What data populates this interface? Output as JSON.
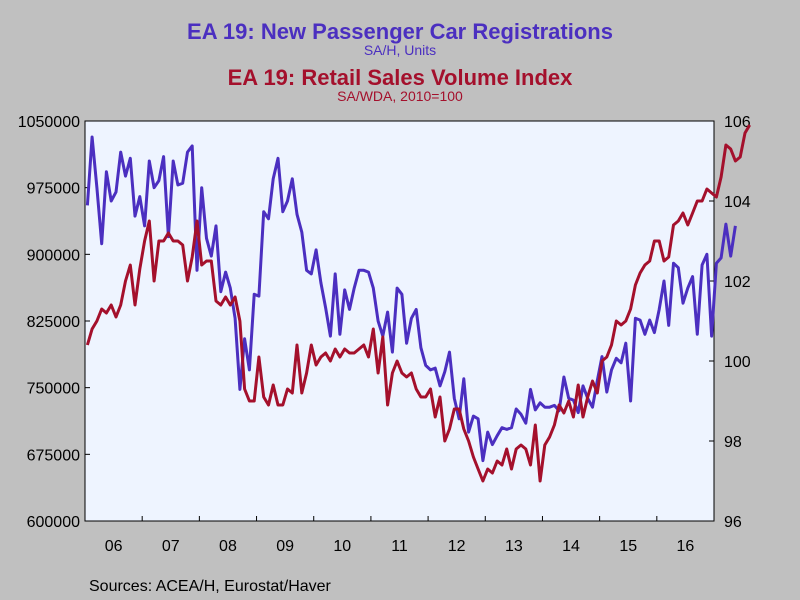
{
  "titles": {
    "title1": "EA 19: New Passenger Car Registrations",
    "subtitle1": "SA/H, Units",
    "title2": "EA 19: Retail Sales Volume Index",
    "subtitle2": "SA/WDA, 2010=100"
  },
  "source": "Sources:  ACEA/H, Eurostat/Haver",
  "colors": {
    "series1": "#4b2fc0",
    "series2": "#a4102c",
    "plot_bg": "#eef4ff",
    "page_bg": "#c0c0c0"
  },
  "chart_data": {
    "type": "line",
    "x_tick_labels": [
      "06",
      "07",
      "08",
      "09",
      "10",
      "11",
      "12",
      "13",
      "14",
      "15",
      "16"
    ],
    "x_start": "2006-01",
    "frequency": "monthly",
    "left_axis": {
      "ylim": [
        600000,
        1050000
      ],
      "ticks": [
        "600000",
        "675000",
        "750000",
        "825000",
        "900000",
        "975000",
        "1050000"
      ]
    },
    "right_axis": {
      "ylim": [
        96,
        106
      ],
      "ticks": [
        "96",
        "98",
        "100",
        "102",
        "104",
        "106"
      ]
    },
    "series": [
      {
        "axis": "left",
        "values": [
          955000,
          1032000,
          975000,
          912000,
          993000,
          960000,
          970000,
          1015000,
          988000,
          1008000,
          943000,
          965000,
          932000,
          1005000,
          975000,
          983000,
          1010000,
          920000,
          1005000,
          978000,
          980000,
          1015000,
          1022000,
          882000,
          975000,
          918000,
          898000,
          932000,
          858000,
          880000,
          862000,
          828000,
          748000,
          805000,
          770000,
          855000,
          853000,
          948000,
          940000,
          985000,
          1008000,
          948000,
          960000,
          985000,
          945000,
          925000,
          882000,
          878000,
          905000,
          868000,
          840000,
          808000,
          878000,
          810000,
          860000,
          838000,
          862000,
          882000,
          882000,
          880000,
          862000,
          825000,
          808000,
          835000,
          790000,
          862000,
          855000,
          800000,
          828000,
          838000,
          795000,
          775000,
          770000,
          772000,
          752000,
          768000,
          790000,
          738000,
          715000,
          760000,
          700000,
          718000,
          715000,
          668000,
          700000,
          686000,
          696000,
          705000,
          703000,
          705000,
          726000,
          720000,
          710000,
          748000,
          725000,
          733000,
          728000,
          728000,
          730000,
          724000,
          762000,
          738000,
          736000,
          722000,
          752000,
          738000,
          728000,
          758000,
          785000,
          745000,
          770000,
          783000,
          778000,
          800000,
          735000,
          828000,
          826000,
          810000,
          826000,
          812000,
          838000,
          870000,
          820000,
          890000,
          885000,
          845000,
          862000,
          875000,
          810000,
          888000,
          900000,
          808000,
          890000,
          896000,
          934000,
          898000,
          932000
        ]
      },
      {
        "axis": "right",
        "values": [
          100.4,
          100.8,
          101.0,
          101.3,
          101.2,
          101.4,
          101.1,
          101.4,
          102.0,
          102.4,
          101.4,
          102.3,
          103.0,
          103.5,
          102.0,
          103.0,
          103.0,
          103.2,
          103.0,
          103.0,
          102.9,
          102.0,
          102.6,
          103.5,
          102.4,
          102.5,
          102.5,
          101.5,
          101.4,
          101.6,
          101.4,
          101.6,
          101.0,
          99.3,
          99.0,
          99.0,
          100.1,
          99.1,
          98.9,
          99.4,
          98.9,
          98.9,
          99.3,
          99.2,
          100.4,
          99.2,
          99.7,
          100.4,
          99.9,
          100.1,
          100.2,
          100.0,
          100.3,
          100.1,
          100.3,
          100.2,
          100.2,
          100.3,
          100.4,
          100.1,
          100.8,
          99.7,
          100.6,
          98.9,
          99.7,
          100.0,
          99.7,
          99.6,
          99.7,
          99.3,
          99.1,
          99.1,
          99.3,
          98.6,
          99.1,
          98.0,
          98.3,
          98.8,
          98.8,
          98.3,
          98.0,
          97.6,
          97.3,
          97.0,
          97.3,
          97.2,
          97.5,
          97.4,
          97.8,
          97.3,
          97.8,
          97.9,
          97.8,
          97.4,
          98.4,
          97.0,
          97.9,
          98.1,
          98.4,
          98.9,
          98.7,
          99.0,
          98.6,
          99.4,
          98.6,
          99.1,
          99.5,
          99.2,
          100.0,
          100.1,
          100.4,
          101.0,
          100.9,
          101.0,
          101.3,
          101.9,
          102.2,
          102.4,
          102.5,
          103.0,
          103.0,
          102.5,
          102.6,
          103.4,
          103.5,
          103.7,
          103.4,
          103.7,
          104.0,
          104.0,
          104.3,
          104.2,
          104.1,
          104.6,
          105.4,
          105.3,
          105.0,
          105.1,
          105.7,
          105.9
        ]
      }
    ]
  }
}
